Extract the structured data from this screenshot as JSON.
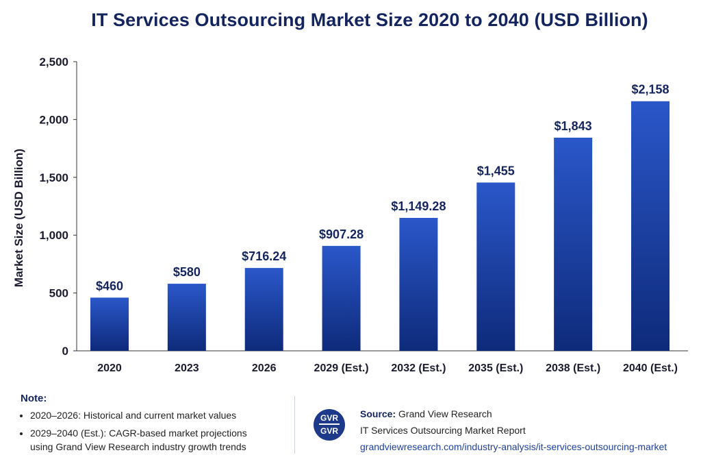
{
  "title": "IT Services Outsourcing Market Size 2020 to 2040 (USD Billion)",
  "chart_data": {
    "type": "bar",
    "categories": [
      "2020",
      "2023",
      "2026",
      "2029 (Est.)",
      "2032 (Est.)",
      "2035 (Est.)",
      "2038 (Est.)",
      "2040 (Est.)"
    ],
    "values": [
      460,
      580,
      716.24,
      907.28,
      1149.28,
      1455,
      1843,
      2158
    ],
    "data_labels": [
      "$460",
      "$580",
      "$716.24",
      "$907.28",
      "$1,149.28",
      "$1,455",
      "$1,843",
      "$2,158"
    ],
    "ylabel": "Market Size (USD Billion)",
    "xlabel": "",
    "ylim": [
      0,
      2500
    ],
    "yticks": [
      0,
      500,
      1000,
      1500,
      2000,
      2500
    ],
    "ytick_labels": [
      "0",
      "500",
      "1,000",
      "1,500",
      "2,000",
      "2,500"
    ],
    "grid": false,
    "bar_color_top": "#2a57c9",
    "bar_color_bottom": "#0e2a7a",
    "label_color": "#13245e"
  },
  "note": {
    "heading": "Note:",
    "items": [
      "2020–2026: Historical and current market values",
      "2029–2040 (Est.): CAGR-based market projections using Grand View Research industry growth trends"
    ]
  },
  "logo": {
    "top": "GVR",
    "bottom": "GVR"
  },
  "source": {
    "label": "Source:",
    "name": "Grand View Research",
    "report": "IT Services Outsourcing Market Report",
    "url": "grandviewresearch.com/industry-analysis/it-services-outsourcing-market"
  }
}
